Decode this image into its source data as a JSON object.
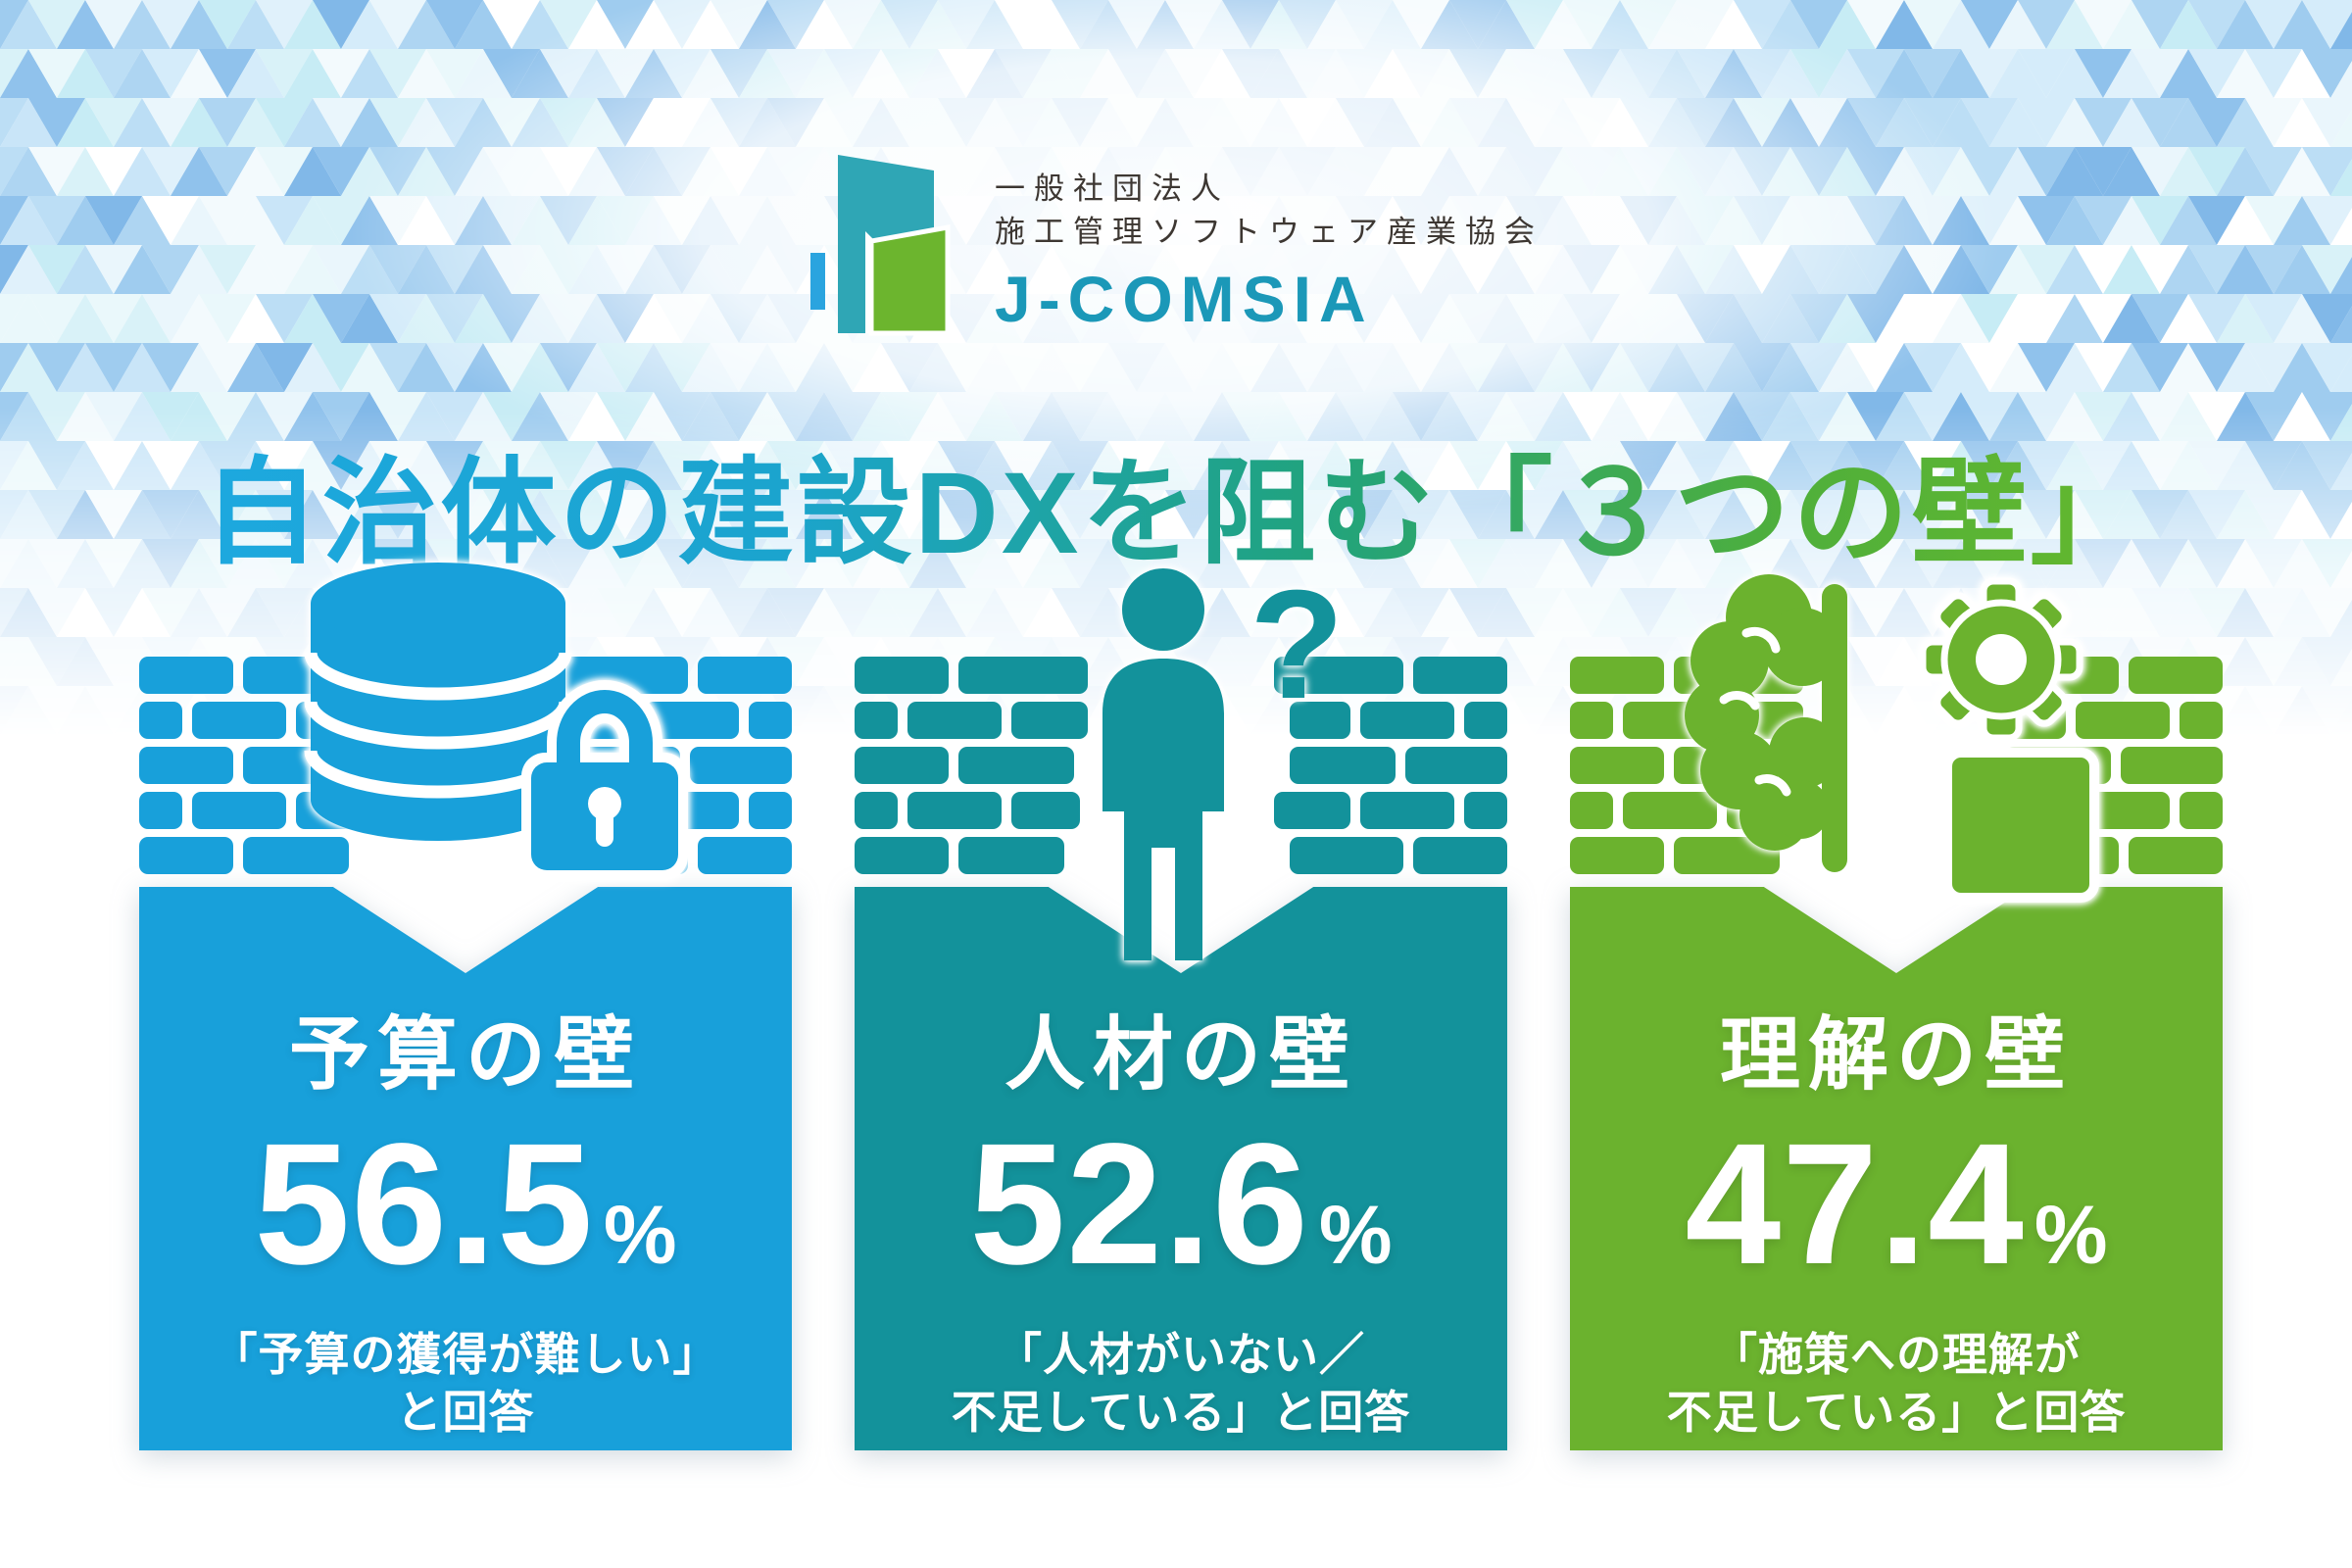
{
  "logo": {
    "org_type": "一般社団法人",
    "org_name": "施工管理ソフトウェア産業協会",
    "brand": "J-COMSIA",
    "brand_color": "#1B98B8",
    "mark_teal": "#2FA6B5",
    "mark_green": "#6CB52E",
    "mark_blue": "#2AA4DF"
  },
  "title": {
    "text": "自治体の建設DXを阻む「３つの壁」",
    "gradient_start": "#1DA8DF",
    "gradient_mid": "#21A37D",
    "gradient_end": "#66B92C"
  },
  "cards": [
    {
      "id": "budget-wall",
      "color": "#18A0DA",
      "icon": "database-lock-icon",
      "title": "予算の壁",
      "percent_value": "56.5",
      "percent_unit": "%",
      "caption_lines": [
        "「予算の獲得が難しい」",
        "と回答"
      ]
    },
    {
      "id": "talent-wall",
      "color": "#13929B",
      "icon": "person-question-icon",
      "title": "人材の壁",
      "percent_value": "52.6",
      "percent_unit": "%",
      "caption_lines": [
        "「人材がいない／",
        "不足している」と回答"
      ]
    },
    {
      "id": "understanding-wall",
      "color": "#6BB22E",
      "icon": "brain-gear-icon",
      "title": "理解の壁",
      "percent_value": "47.4",
      "percent_unit": "%",
      "caption_lines": [
        "「施策への理解が",
        "不足している」と回答"
      ]
    }
  ],
  "chart_data": {
    "type": "bar",
    "title": "自治体の建設DXを阻む「３つの壁」",
    "categories": [
      "予算の壁",
      "人材の壁",
      "理解の壁"
    ],
    "values": [
      56.5,
      52.6,
      47.4
    ],
    "unit": "%",
    "annotations": [
      "「予算の獲得が難しい」と回答",
      "「人材がいない／不足している」と回答",
      "「施策への理解が不足している」と回答"
    ],
    "series_colors": [
      "#18A0DA",
      "#13929B",
      "#6BB22E"
    ]
  }
}
